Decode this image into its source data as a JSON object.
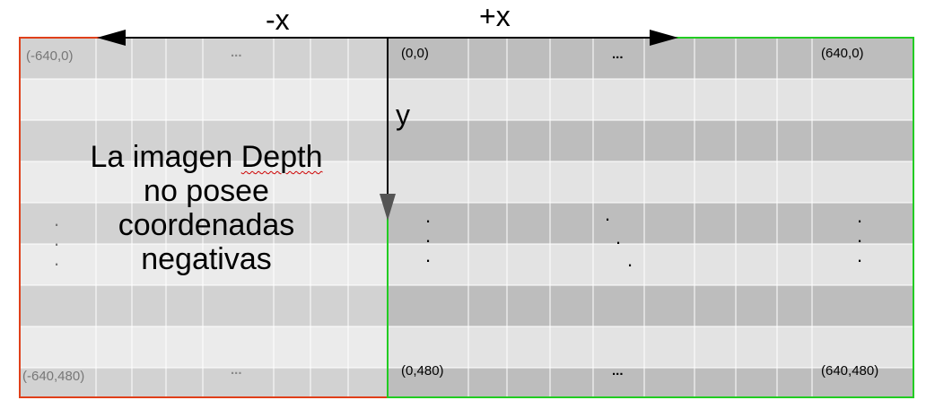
{
  "labels": {
    "neg_x": "-x",
    "pos_x": "+x",
    "y": "y"
  },
  "corners": {
    "left_top": "(-640,0)",
    "left_bottom": "(-640,480)",
    "right_top_left": "(0,0)",
    "right_top_right": "(640,0)",
    "right_bottom_left": "(0,480)",
    "right_bottom_right": "(640,480)"
  },
  "ellipsis": {
    "left_top": "...",
    "left_bottom": "...",
    "right_top": "...",
    "right_bottom": "..."
  },
  "note": {
    "line1_a": "La imagen ",
    "line1_b": "Depth",
    "line2": "no  posee",
    "line3": "coordenadas",
    "line4": "negativas"
  },
  "colors": {
    "left_border": "#e0401a",
    "right_border": "#22cc22",
    "left_dark_row": "#d2d2d2",
    "left_light_row": "#ebebeb",
    "right_dark_row": "#bdbdbd",
    "right_light_row": "#e3e3e3",
    "arrow": "#000000"
  }
}
